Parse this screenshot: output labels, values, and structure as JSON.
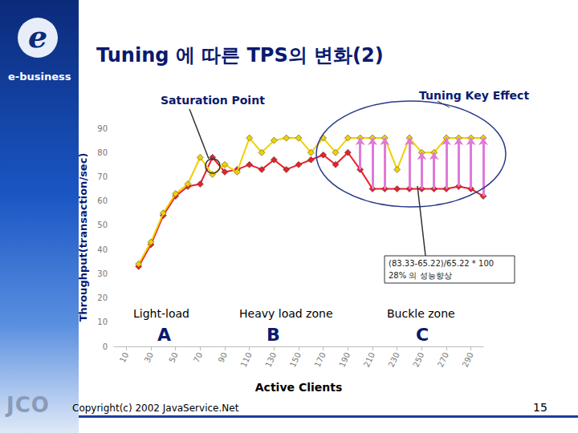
{
  "chart_data": {
    "type": "line",
    "title": "Tuning 에 따른 TPS의 변화(2)",
    "x_label": "Active Clients",
    "y_label": "Throughput(transaction/sec)",
    "x": [
      20,
      30,
      40,
      50,
      60,
      70,
      80,
      90,
      100,
      110,
      120,
      130,
      140,
      150,
      160,
      170,
      180,
      190,
      200,
      210,
      220,
      230,
      240,
      250,
      260,
      270,
      280,
      290,
      300
    ],
    "series": [
      {
        "color": "#f0d000",
        "marker": "diamond",
        "values": [
          34,
          43,
          55,
          63,
          67,
          78,
          71,
          75,
          72,
          86,
          80,
          85,
          86,
          86,
          80,
          86,
          80,
          86,
          86,
          86,
          86,
          73,
          86,
          80,
          80,
          86,
          86,
          86,
          86
        ]
      },
      {
        "color": "#e8202a",
        "marker": "diamond",
        "values": [
          33,
          42,
          54,
          62,
          66,
          67,
          78,
          72,
          73,
          75,
          73,
          77,
          73,
          75,
          77,
          79,
          75,
          80,
          73,
          65,
          65,
          65,
          65,
          65,
          65,
          65,
          66,
          65,
          62
        ]
      }
    ],
    "xlim": [
      0,
      300
    ],
    "xticks": [
      10,
      30,
      50,
      70,
      90,
      110,
      130,
      150,
      170,
      190,
      210,
      230,
      250,
      270,
      290
    ],
    "ylim": [
      0,
      90
    ],
    "yticks": [
      0,
      10,
      20,
      30,
      40,
      50,
      60,
      70,
      80,
      90
    ],
    "grid": false,
    "annotations": [
      "Saturation Point",
      "Tuning Key Effect",
      "(83.33-65.22)/65.22 * 100",
      "28% 의 성능향상",
      "Light-load",
      "Heavy load zone",
      "Buckle zone",
      "A",
      "B",
      "C"
    ]
  },
  "slide": {
    "logo": "e-business",
    "brand": "JCO",
    "copyright": "Copyright(c) 2002 JavaService.Net",
    "page": "15"
  }
}
